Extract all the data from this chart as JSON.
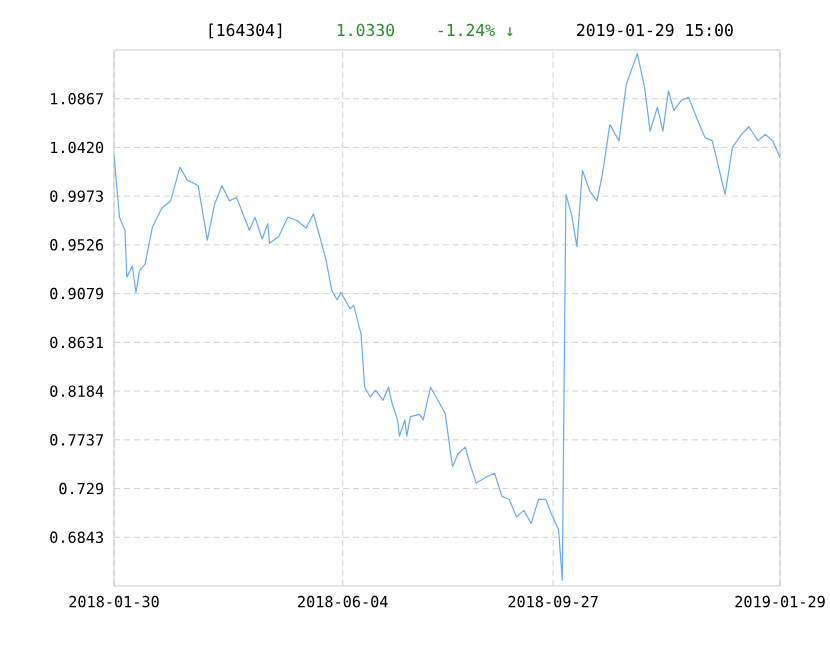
{
  "chart_data": {
    "type": "line",
    "title": "[164304]",
    "annotations": [
      "1.0330",
      "-1.24% ↓",
      "2019-01-29 15:00"
    ],
    "x": [
      "2018-01-30",
      "2018-02-02",
      "2018-02-05",
      "2018-02-06",
      "2018-02-09",
      "2018-02-11",
      "2018-02-13",
      "2018-02-16",
      "2018-02-20",
      "2018-02-25",
      "2018-03-02",
      "2018-03-07",
      "2018-03-11",
      "2018-03-17",
      "2018-03-22",
      "2018-03-26",
      "2018-03-30",
      "2018-04-03",
      "2018-04-07",
      "2018-04-14",
      "2018-04-17",
      "2018-04-21",
      "2018-04-24",
      "2018-04-25",
      "2018-04-30",
      "2018-05-05",
      "2018-05-10",
      "2018-05-15",
      "2018-05-19",
      "2018-05-22",
      "2018-05-26",
      "2018-05-29",
      "2018-06-01",
      "2018-06-03",
      "2018-06-08",
      "2018-06-10",
      "2018-06-14",
      "2018-06-16",
      "2018-06-19",
      "2018-06-22",
      "2018-06-26",
      "2018-06-29",
      "2018-07-01",
      "2018-07-04",
      "2018-07-05",
      "2018-07-08",
      "2018-07-09",
      "2018-07-11",
      "2018-07-16",
      "2018-07-18",
      "2018-07-22",
      "2018-07-25",
      "2018-07-30",
      "2018-08-03",
      "2018-08-06",
      "2018-08-10",
      "2018-08-13",
      "2018-08-16",
      "2018-08-22",
      "2018-08-26",
      "2018-08-30",
      "2018-09-03",
      "2018-09-07",
      "2018-09-11",
      "2018-09-15",
      "2018-09-19",
      "2018-09-23",
      "2018-09-26",
      "2018-09-30",
      "2018-10-02",
      "2018-10-04",
      "2018-10-07",
      "2018-10-10",
      "2018-10-13",
      "2018-10-17",
      "2018-10-21",
      "2018-10-24",
      "2018-10-28",
      "2018-11-02",
      "2018-11-06",
      "2018-11-12",
      "2018-11-16",
      "2018-11-19",
      "2018-11-23",
      "2018-11-26",
      "2018-11-29",
      "2018-12-02",
      "2018-12-06",
      "2018-12-10",
      "2018-12-15",
      "2018-12-19",
      "2018-12-23",
      "2018-12-26",
      "2018-12-30",
      "2019-01-03",
      "2019-01-08",
      "2019-01-12",
      "2019-01-17",
      "2019-01-21",
      "2019-01-25",
      "2019-01-29"
    ],
    "values": [
      1.035,
      0.978,
      0.966,
      0.923,
      0.933,
      0.909,
      0.929,
      0.935,
      0.969,
      0.986,
      0.993,
      1.024,
      1.012,
      1.007,
      0.957,
      0.99,
      1.007,
      0.993,
      0.996,
      0.966,
      0.978,
      0.958,
      0.972,
      0.954,
      0.96,
      0.978,
      0.975,
      0.968,
      0.981,
      0.963,
      0.938,
      0.911,
      0.902,
      0.909,
      0.894,
      0.897,
      0.871,
      0.822,
      0.813,
      0.819,
      0.81,
      0.822,
      0.807,
      0.792,
      0.777,
      0.792,
      0.777,
      0.795,
      0.797,
      0.792,
      0.822,
      0.813,
      0.798,
      0.749,
      0.761,
      0.767,
      0.749,
      0.734,
      0.74,
      0.743,
      0.722,
      0.719,
      0.703,
      0.709,
      0.697,
      0.719,
      0.719,
      0.706,
      0.691,
      0.645,
      0.999,
      0.981,
      0.951,
      1.021,
      1.002,
      0.993,
      1.018,
      1.063,
      1.048,
      1.1,
      1.128,
      1.097,
      1.057,
      1.079,
      1.057,
      1.094,
      1.076,
      1.085,
      1.088,
      1.067,
      1.051,
      1.048,
      1.027,
      0.999,
      1.042,
      1.054,
      1.061,
      1.048,
      1.054,
      1.048,
      1.033
    ],
    "color": "#6aaaf0",
    "xlim": [
      "2018-01-30",
      "2019-01-29"
    ],
    "ylim": [
      0.6396,
      1.1314
    ],
    "xticks": [
      "2018-01-30",
      "2018-06-04",
      "2018-09-27",
      "2019-01-29"
    ],
    "yticks": [
      0.6843,
      0.729,
      {
        "value": 0.7737,
        "label": "0.7737"
      },
      0.8184,
      0.8631,
      0.9079,
      0.9526,
      0.9973,
      {
        "value": 1.042,
        "label": "1.0420"
      },
      1.0867
    ],
    "grid": true
  }
}
